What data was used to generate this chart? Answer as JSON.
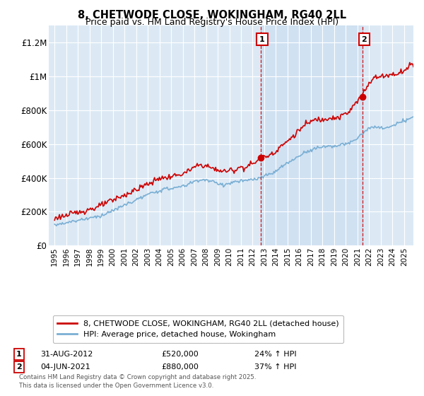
{
  "title": "8, CHETWODE CLOSE, WOKINGHAM, RG40 2LL",
  "subtitle": "Price paid vs. HM Land Registry's House Price Index (HPI)",
  "ylim": [
    0,
    1300000
  ],
  "yticks": [
    0,
    200000,
    400000,
    600000,
    800000,
    1000000,
    1200000
  ],
  "ytick_labels": [
    "£0",
    "£200K",
    "£400K",
    "£600K",
    "£800K",
    "£1M",
    "£1.2M"
  ],
  "plot_bg_color": "#dce9f5",
  "fig_bg_color": "#ffffff",
  "red_color": "#cc0000",
  "blue_color": "#7aafd4",
  "shade_color": "#c8ddf0",
  "marker1_x": 2012.67,
  "marker1_y": 520000,
  "marker1_label": "1",
  "marker2_x": 2021.42,
  "marker2_y": 880000,
  "marker2_label": "2",
  "legend_line1": "8, CHETWODE CLOSE, WOKINGHAM, RG40 2LL (detached house)",
  "legend_line2": "HPI: Average price, detached house, Wokingham",
  "copyright": "Contains HM Land Registry data © Crown copyright and database right 2025.\nThis data is licensed under the Open Government Licence v3.0.",
  "xmin": 1994.5,
  "xmax": 2025.8
}
